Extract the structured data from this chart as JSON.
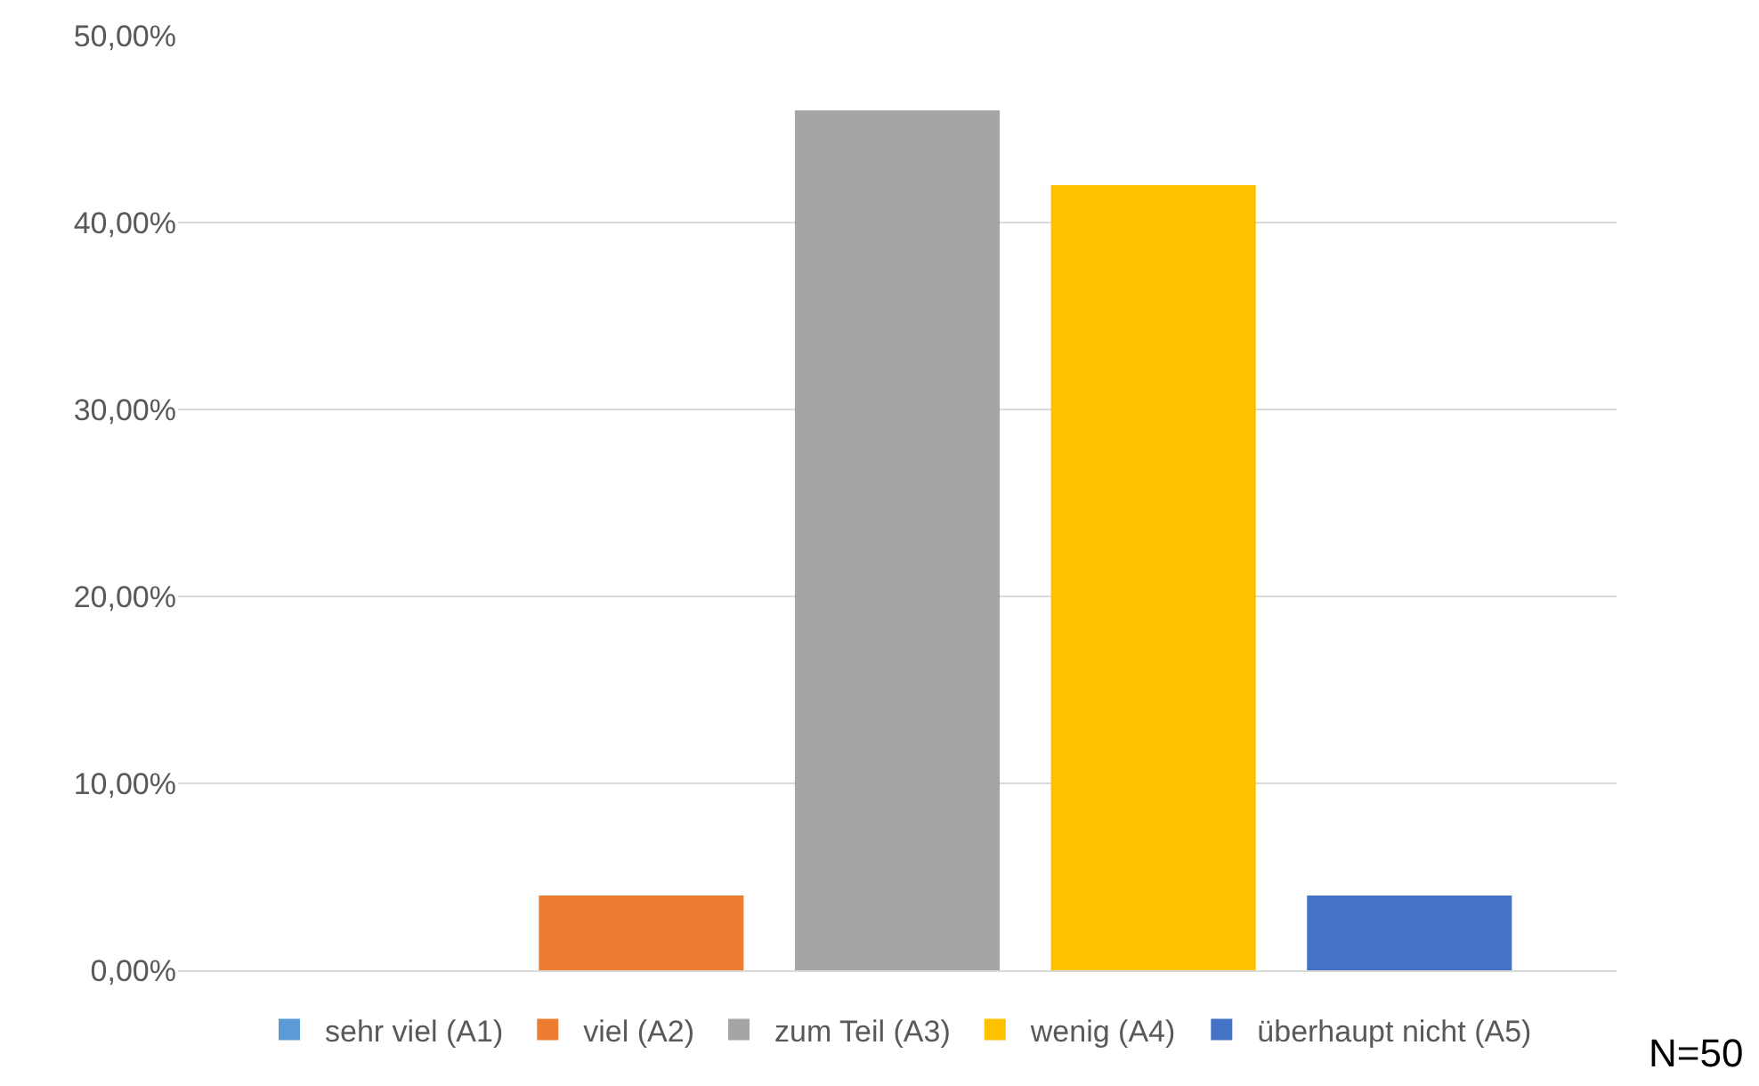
{
  "chart_data": {
    "type": "bar",
    "categories": [
      null
    ],
    "series": [
      {
        "name": "sehr viel (A1)",
        "color": "#5b9bd5",
        "values": [
          0
        ]
      },
      {
        "name": "viel (A2)",
        "color": "#ed7d31",
        "values": [
          4
        ]
      },
      {
        "name": "zum Teil (A3)",
        "color": "#a5a5a5",
        "values": [
          46
        ]
      },
      {
        "name": "wenig (A4)",
        "color": "#ffc000",
        "values": [
          42
        ]
      },
      {
        "name": "überhaupt nicht (A5)",
        "color": "#4472c4",
        "values": [
          4
        ]
      }
    ],
    "ylim": [
      0,
      50
    ],
    "yticks": [
      {
        "value": 0,
        "label": "0,00%"
      },
      {
        "value": 10,
        "label": "10,00%"
      },
      {
        "value": 20,
        "label": "20,00%"
      },
      {
        "value": 30,
        "label": "30,00%"
      },
      {
        "value": 40,
        "label": "40,00%"
      },
      {
        "value": 50,
        "label": "50,00%"
      }
    ],
    "grid": "y",
    "legend": "bottom",
    "annotations": [
      "N=50"
    ]
  }
}
